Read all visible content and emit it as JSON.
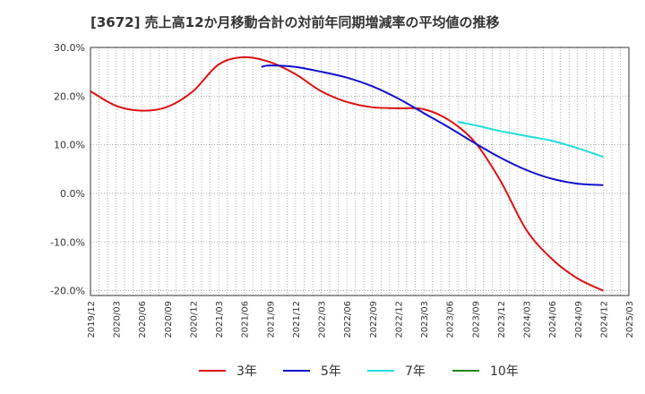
{
  "chart_data": {
    "type": "line",
    "title": "[3672]  売上高12か月移動合計の対前年同期増減率の平均値の推移",
    "xlabel": "",
    "ylabel": "",
    "ylim": [
      -21,
      30
    ],
    "y_ticks": [
      "30.0%",
      "20.0%",
      "10.0%",
      "0.0%",
      "-10.0%",
      "-20.0%"
    ],
    "y_tick_values": [
      30,
      20,
      10,
      0,
      -10,
      -20
    ],
    "x_ticks": [
      "2019/12",
      "2020/03",
      "2020/06",
      "2020/09",
      "2020/12",
      "2021/03",
      "2021/06",
      "2021/09",
      "2021/12",
      "2022/03",
      "2022/06",
      "2022/09",
      "2022/12",
      "2023/03",
      "2023/06",
      "2023/09",
      "2023/12",
      "2024/03",
      "2024/06",
      "2024/09",
      "2024/12",
      "2025/03"
    ],
    "grid": true,
    "legend_position": "bottom",
    "series": [
      {
        "name": "3年",
        "color": "#dd1111",
        "x": [
          "2019/12",
          "2020/03",
          "2020/06",
          "2020/09",
          "2020/12",
          "2021/03",
          "2021/06",
          "2021/09",
          "2021/12",
          "2022/03",
          "2022/06",
          "2022/09",
          "2022/12",
          "2023/03",
          "2023/06",
          "2023/09",
          "2023/12",
          "2024/03",
          "2024/06",
          "2024/09",
          "2024/12"
        ],
        "values": [
          21.0,
          18.0,
          17.0,
          17.8,
          21.0,
          26.5,
          28.0,
          27.0,
          24.5,
          21.0,
          18.8,
          17.7,
          17.5,
          17.3,
          15.0,
          10.5,
          2.5,
          -7.5,
          -13.5,
          -17.5,
          -20.0
        ]
      },
      {
        "name": "5年",
        "color": "#1111cc",
        "x": [
          "2021/08",
          "2021/09",
          "2021/12",
          "2022/03",
          "2022/06",
          "2022/09",
          "2022/12",
          "2023/03",
          "2023/06",
          "2023/09",
          "2023/12",
          "2024/03",
          "2024/06",
          "2024/09",
          "2024/12"
        ],
        "values": [
          26.0,
          26.3,
          26.0,
          25.0,
          23.8,
          22.0,
          19.5,
          16.5,
          13.5,
          10.3,
          7.3,
          4.8,
          3.0,
          2.0,
          1.7
        ]
      },
      {
        "name": "7年",
        "color": "#22dddd",
        "x": [
          "2023/07",
          "2023/09",
          "2023/12",
          "2024/03",
          "2024/06",
          "2024/09",
          "2024/12"
        ],
        "values": [
          14.7,
          14.0,
          12.8,
          11.8,
          10.8,
          9.3,
          7.5
        ]
      },
      {
        "name": "10年",
        "color": "#228822",
        "x": [],
        "values": []
      }
    ]
  }
}
